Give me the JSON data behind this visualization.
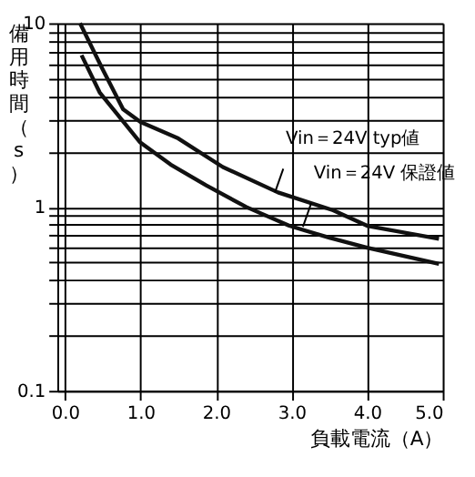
{
  "chart_data": {
    "type": "line",
    "xlabel": "負載電流（A）",
    "ylabel": "備用時間（s）",
    "log": "y",
    "grid": true,
    "marker": "none",
    "line_style": "solid",
    "xlim": [
      -0.1,
      5.0
    ],
    "ylim": [
      0.1,
      10
    ],
    "xticks": [
      {
        "value": 0,
        "label": "0.0"
      },
      {
        "value": 1,
        "label": "1.0"
      },
      {
        "value": 2,
        "label": "2.0"
      },
      {
        "value": 3,
        "label": "3.0"
      },
      {
        "value": 4,
        "label": "4.0"
      },
      {
        "value": 5,
        "label": "5.0"
      }
    ],
    "yticks": [
      0.1,
      {
        "value": 0.2,
        "label": null
      },
      {
        "value": 0.3,
        "label": null
      },
      {
        "value": 0.4,
        "label": null
      },
      {
        "value": 0.5,
        "label": null
      },
      {
        "value": 0.6,
        "label": null
      },
      {
        "value": 0.7,
        "label": null
      },
      {
        "value": 0.8,
        "label": null
      },
      {
        "value": 0.9,
        "label": null
      },
      1,
      {
        "value": 2,
        "label": null
      },
      {
        "value": 3,
        "label": null
      },
      {
        "value": 4,
        "label": null
      },
      {
        "value": 5,
        "label": null
      },
      {
        "value": 6,
        "label": null
      },
      {
        "value": 7,
        "label": null
      },
      {
        "value": 8,
        "label": null
      },
      {
        "value": 9,
        "label": null
      },
      10
    ],
    "series": [
      {
        "color": "#111111",
        "x": [
          0.2,
          0.5,
          0.77,
          1.0,
          1.5,
          2.09,
          2.82,
          3.55,
          4.0,
          4.95
        ],
        "values": [
          10,
          5.6,
          3.4,
          2.9,
          2.36,
          1.65,
          1.2,
          0.96,
          0.79,
          0.67
        ]
      },
      {
        "color": "#111111",
        "x": [
          0.22,
          0.46,
          0.99,
          1.4,
          1.87,
          2.4,
          2.97,
          3.5,
          4.0,
          4.95
        ],
        "values": [
          6.7,
          4.2,
          2.26,
          1.7,
          1.31,
          1.0,
          0.79,
          0.68,
          0.6,
          0.49
        ]
      }
    ],
    "annotations": [
      {
        "text": "Vin＝24V  typ値",
        "x": 2.78,
        "y": 1.2
      },
      {
        "text": "Vin＝24V  保證値",
        "x": 3.15,
        "y": 0.78
      }
    ]
  }
}
